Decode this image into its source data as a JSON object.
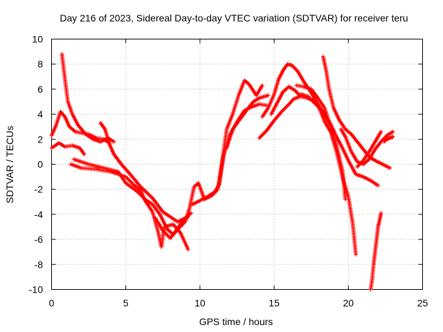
{
  "chart_data": {
    "type": "scatter",
    "title": "Day 216 of 2023, Sidereal Day-to-day VTEC variation (SDTVAR) for receiver teru",
    "xlabel": "GPS time / hours",
    "ylabel": "SDTVAR / TECUs",
    "xlim": [
      0,
      25
    ],
    "ylim": [
      -10,
      10
    ],
    "xticks": [
      "0",
      "5",
      "10",
      "15",
      "20",
      "25"
    ],
    "yticks": [
      "-10",
      "-8",
      "-6",
      "-4",
      "-2",
      "0",
      "2",
      "4",
      "6",
      "8",
      "10"
    ],
    "grid": true,
    "legend": "none",
    "marker": "+",
    "color": "#ff0000",
    "series": [
      {
        "x": [
          0.7,
          0.9,
          1.1,
          1.4,
          1.8,
          2.3,
          2.8,
          3.3,
          3.8,
          4.2
        ],
        "y": [
          8.8,
          6.8,
          5.0,
          4.0,
          3.1,
          2.4,
          2.0,
          1.8,
          2.1,
          1.8
        ]
      },
      {
        "x": [
          0.0,
          0.3,
          0.6,
          0.9,
          1.2,
          1.6,
          2.0,
          2.5,
          3.0,
          3.5,
          3.9
        ],
        "y": [
          2.3,
          3.1,
          4.2,
          3.8,
          3.0,
          2.6,
          2.5,
          2.4,
          2.1,
          2.0,
          1.7
        ]
      },
      {
        "x": [
          0.0,
          0.5,
          0.9,
          1.4,
          1.9,
          2.2
        ],
        "y": [
          1.3,
          1.7,
          1.4,
          1.5,
          1.3,
          0.8
        ]
      },
      {
        "x": [
          1.3,
          2.0,
          3.0,
          4.0,
          5.0,
          5.5,
          6.0,
          6.3,
          6.8,
          7.2,
          7.4,
          7.6,
          8.2,
          8.7,
          9.2
        ],
        "y": [
          0.0,
          -0.3,
          -0.4,
          -0.6,
          -1.0,
          -1.6,
          -2.1,
          -2.9,
          -3.8,
          -5.5,
          -6.6,
          -5.0,
          -4.8,
          -5.5,
          -6.8
        ]
      },
      {
        "x": [
          1.5,
          2.5,
          3.5,
          4.5,
          5.0,
          5.8,
          6.3,
          6.8,
          7.3,
          7.8,
          8.2,
          8.8,
          9.2
        ],
        "y": [
          0.4,
          0.0,
          -0.3,
          -0.6,
          -1.5,
          -2.2,
          -2.8,
          -3.2,
          -4.0,
          -5.2,
          -5.6,
          -4.6,
          -4.2
        ]
      },
      {
        "x": [
          3.3,
          3.6,
          3.9,
          4.2,
          4.7,
          5.3,
          6.0,
          6.8,
          7.5,
          8.0,
          8.5,
          9.0,
          9.4
        ],
        "y": [
          3.3,
          2.8,
          1.6,
          0.8,
          0.0,
          -0.8,
          -1.8,
          -2.7,
          -3.8,
          -4.2,
          -4.6,
          -4.3,
          -3.9
        ]
      },
      {
        "x": [
          7.0,
          7.5,
          8.0,
          8.5,
          9.0,
          9.3,
          9.6,
          9.9,
          10.3,
          10.8,
          11.2,
          11.5,
          11.8,
          12.2,
          12.6,
          13.0,
          13.3,
          13.8,
          14.2
        ],
        "y": [
          -4.3,
          -5.3,
          -5.9,
          -5.2,
          -4.6,
          -3.5,
          -1.8,
          -1.5,
          -2.8,
          -2.5,
          -2.0,
          0.3,
          2.8,
          4.0,
          5.5,
          6.7,
          6.4,
          5.5,
          6.3
        ]
      },
      {
        "x": [
          9.5,
          10.0,
          10.5,
          11.0,
          11.3,
          11.6,
          12.0,
          12.5,
          13.0,
          13.5,
          14.0,
          14.5
        ],
        "y": [
          -3.2,
          -2.9,
          -2.6,
          -2.2,
          -1.6,
          0.7,
          2.3,
          3.4,
          4.3,
          4.6,
          4.8,
          4.7
        ]
      },
      {
        "x": [
          11.8,
          12.2,
          12.7,
          13.2,
          13.6,
          14.0,
          14.6
        ],
        "y": [
          1.3,
          2.8,
          3.6,
          4.4,
          5.0,
          5.3,
          5.5
        ]
      },
      {
        "x": [
          14.0,
          14.5,
          15.0,
          15.5,
          16.0,
          16.3,
          16.7
        ],
        "y": [
          2.1,
          2.7,
          3.5,
          4.2,
          4.8,
          5.2,
          5.4
        ]
      },
      {
        "x": [
          14.2,
          14.6,
          15.0,
          15.3,
          15.6,
          15.9,
          16.2,
          16.6,
          17.0,
          17.5,
          18.0,
          18.5,
          19.0
        ],
        "y": [
          3.8,
          4.5,
          5.6,
          6.8,
          7.5,
          8.0,
          7.9,
          7.4,
          6.6,
          5.7,
          4.7,
          3.7,
          2.7
        ]
      },
      {
        "x": [
          14.8,
          15.2,
          15.6,
          16.0,
          16.4,
          16.8,
          17.2,
          17.6,
          18.0,
          18.4,
          18.8,
          19.2,
          19.6,
          20.0,
          20.3,
          20.5
        ],
        "y": [
          4.0,
          4.9,
          5.8,
          6.2,
          5.9,
          5.4,
          5.3,
          5.1,
          4.6,
          3.4,
          2.6,
          1.0,
          -1.0,
          -2.6,
          -4.8,
          -7.2
        ]
      },
      {
        "x": [
          16.5,
          17.0,
          17.5,
          18.0,
          18.4,
          18.8,
          19.2,
          19.6,
          19.8
        ],
        "y": [
          6.3,
          6.2,
          6.0,
          5.2,
          4.5,
          3.0,
          1.5,
          -0.5,
          -2.8
        ]
      },
      {
        "x": [
          16.8,
          17.3,
          17.8,
          18.3,
          18.8,
          19.2,
          19.6,
          20.0,
          20.5,
          21.0,
          21.5,
          22.0
        ],
        "y": [
          5.6,
          5.4,
          4.8,
          4.2,
          3.2,
          2.2,
          1.3,
          0.3,
          -0.8,
          -1.0,
          -1.3,
          -1.7
        ]
      },
      {
        "x": [
          18.3,
          18.5,
          18.7,
          19.0,
          19.4,
          19.8,
          20.2,
          20.6,
          21.0,
          21.4,
          21.8,
          22.3,
          22.8
        ],
        "y": [
          8.6,
          7.5,
          6.0,
          4.5,
          3.5,
          2.8,
          2.4,
          1.8,
          1.2,
          0.6,
          0.3,
          0.0,
          -0.3
        ]
      },
      {
        "x": [
          19.5,
          19.8,
          20.2,
          20.6,
          21.0,
          21.4,
          21.8,
          22.2,
          22.6,
          23.0
        ],
        "y": [
          2.8,
          2.2,
          1.0,
          0.2,
          0.0,
          0.4,
          1.2,
          1.8,
          2.3,
          2.6
        ]
      },
      {
        "x": [
          20.6,
          21.0,
          21.4,
          21.8,
          22.2
        ],
        "y": [
          -0.2,
          0.3,
          1.0,
          1.8,
          2.6
        ]
      },
      {
        "x": [
          21.5,
          21.6,
          21.7,
          21.8,
          21.9,
          22.0,
          22.1,
          22.2
        ],
        "y": [
          -10.0,
          -9.2,
          -8.0,
          -7.0,
          -6.0,
          -5.0,
          -4.5,
          -3.9
        ]
      },
      {
        "x": [
          22.4,
          22.6,
          22.8,
          23.0
        ],
        "y": [
          1.8,
          2.0,
          2.1,
          2.2
        ]
      }
    ]
  }
}
